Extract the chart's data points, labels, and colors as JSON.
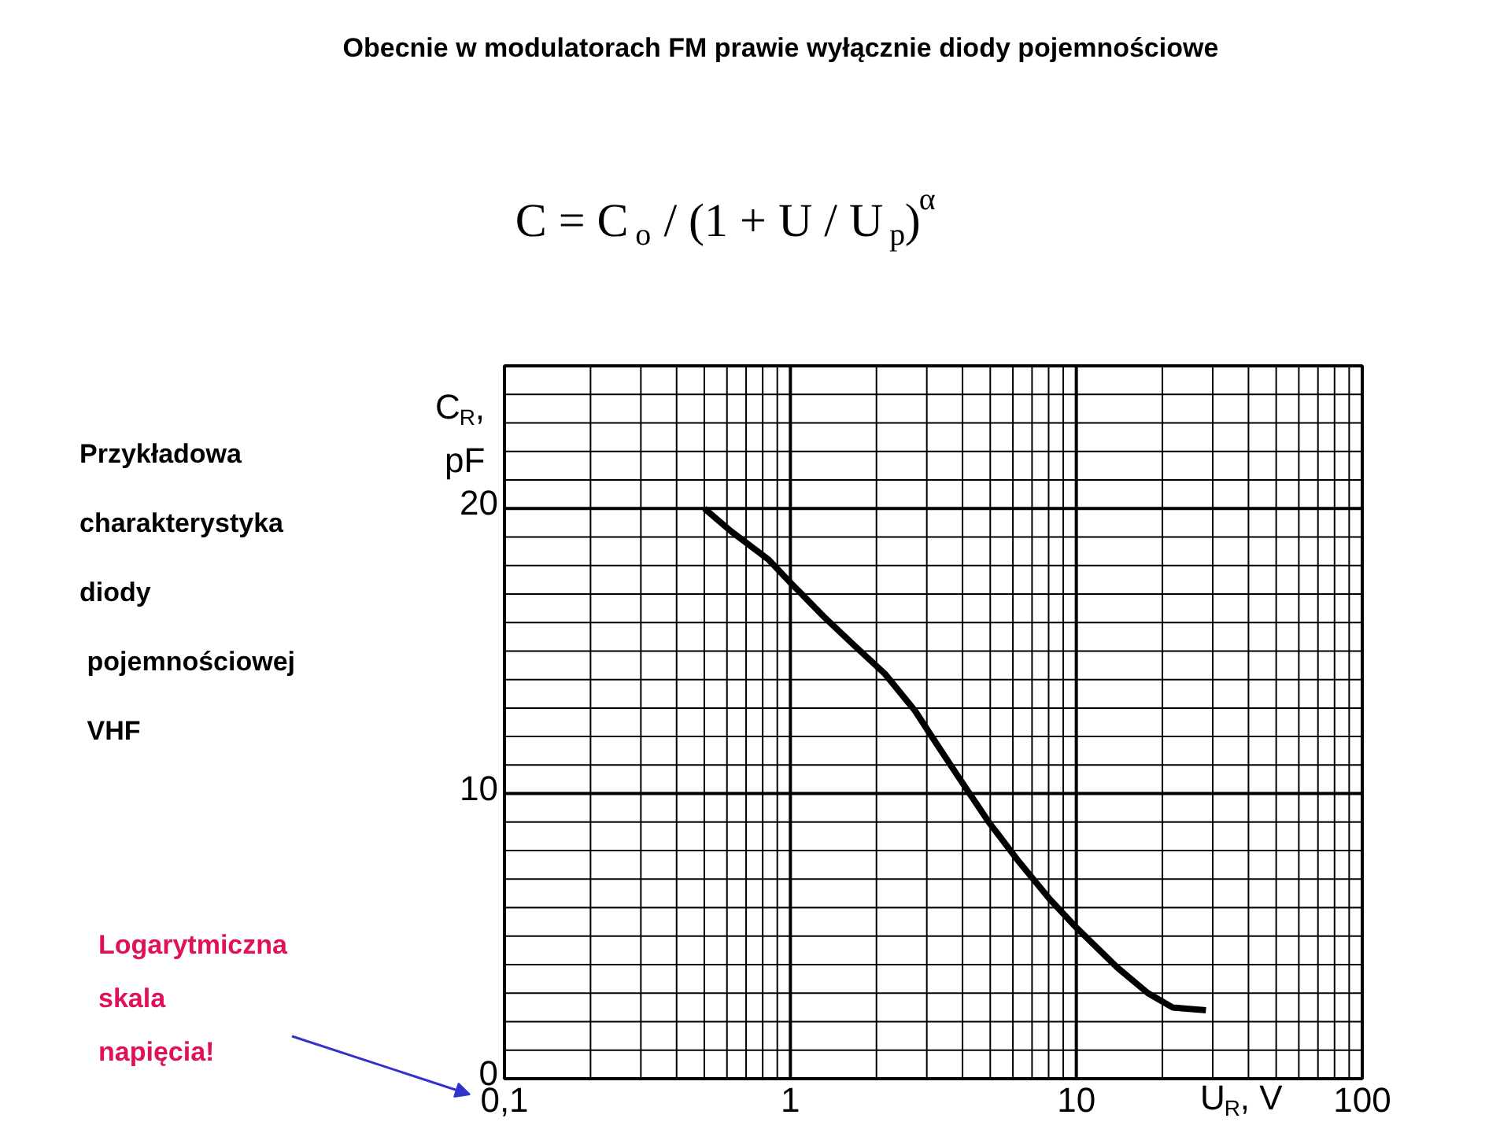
{
  "chart_data": {
    "type": "line",
    "title": "Obecnie w modulatorach FM prawie wyłącznie diody pojemnościowe",
    "annotations": [
      "C = C$_{o}$ / (1 + U / U$_{p}$)$^{α}$",
      "Przykładowa\ncharakterystyka\ndiody\n pojemnościowej\n VHF",
      "Logarytmiczna\nskala\nnapięcia!"
    ],
    "xlabel": "U$_{R}$, V",
    "ylabel": "C$_{R}$, pF",
    "log": "x",
    "grid": true,
    "marker": "none",
    "line_style": "solid",
    "xlim": [
      0.1,
      100
    ],
    "ylim": [
      0,
      25
    ],
    "xticks": [
      {
        "value": 0.1,
        "label": "0,1"
      },
      {
        "value": 0.2,
        "label": null
      },
      {
        "value": 0.3,
        "label": null
      },
      {
        "value": 0.4,
        "label": null
      },
      {
        "value": 0.5,
        "label": null
      },
      {
        "value": 0.6,
        "label": null
      },
      {
        "value": 0.7,
        "label": null
      },
      {
        "value": 0.8,
        "label": null
      },
      {
        "value": 0.9,
        "label": null
      },
      1,
      {
        "value": 2,
        "label": null
      },
      {
        "value": 3,
        "label": null
      },
      {
        "value": 4,
        "label": null
      },
      {
        "value": 5,
        "label": null
      },
      {
        "value": 6,
        "label": null
      },
      {
        "value": 7,
        "label": null
      },
      {
        "value": 8,
        "label": null
      },
      {
        "value": 9,
        "label": null
      },
      10,
      {
        "value": 20,
        "label": null
      },
      {
        "value": 30,
        "label": null
      },
      {
        "value": 40,
        "label": null
      },
      {
        "value": 50,
        "label": null
      },
      {
        "value": 60,
        "label": null
      },
      {
        "value": 70,
        "label": null
      },
      {
        "value": 80,
        "label": null
      },
      {
        "value": 90,
        "label": null
      },
      100
    ],
    "yticks": [
      0,
      {
        "value": 1,
        "label": null
      },
      {
        "value": 2,
        "label": null
      },
      {
        "value": 3,
        "label": null
      },
      {
        "value": 4,
        "label": null
      },
      {
        "value": 5,
        "label": null
      },
      {
        "value": 6,
        "label": null
      },
      {
        "value": 7,
        "label": null
      },
      {
        "value": 8,
        "label": null
      },
      {
        "value": 9,
        "label": null
      },
      10,
      {
        "value": 11,
        "label": null
      },
      {
        "value": 12,
        "label": null
      },
      {
        "value": 13,
        "label": null
      },
      {
        "value": 14,
        "label": null
      },
      {
        "value": 15,
        "label": null
      },
      {
        "value": 16,
        "label": null
      },
      {
        "value": 17,
        "label": null
      },
      {
        "value": 18,
        "label": null
      },
      {
        "value": 19,
        "label": null
      },
      20,
      {
        "value": 21,
        "label": null
      },
      {
        "value": 22,
        "label": null
      },
      {
        "value": 23,
        "label": null
      },
      {
        "value": 24,
        "label": null
      },
      {
        "value": 25,
        "label": null
      }
    ],
    "x": [
      0.5,
      0.62,
      0.84,
      1,
      1.31,
      1.67,
      2.14,
      2.73,
      3.17,
      3.86,
      4.94,
      6.31,
      8.07,
      10,
      13.9,
      17.8,
      21.7,
      28.4
    ],
    "series": [
      {
        "color": "#000000",
        "values": [
          20.0,
          19.2,
          18.2,
          17.4,
          16.2,
          15.2,
          14.2,
          12.9,
          11.9,
          10.6,
          9.0,
          7.6,
          6.3,
          5.3,
          3.9,
          3.0,
          2.5,
          2.4
        ]
      }
    ]
  }
}
